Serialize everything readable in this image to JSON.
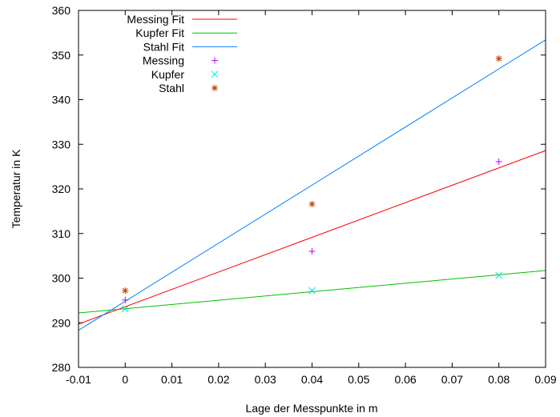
{
  "chart_data": {
    "type": "line",
    "title": "",
    "xlabel": "Lage der Messpunkte in m",
    "ylabel": "Temperatur in K",
    "xlim": [
      -0.01,
      0.09
    ],
    "ylim": [
      280,
      360
    ],
    "xticks": [
      -0.01,
      0,
      0.01,
      0.02,
      0.03,
      0.04,
      0.05,
      0.06,
      0.07,
      0.08,
      0.09
    ],
    "xtick_labels": [
      "-0.01",
      "0",
      "0.01",
      "0.02",
      "0.03",
      "0.04",
      "0.05",
      "0.06",
      "0.07",
      "0.08",
      "0.09"
    ],
    "yticks": [
      280,
      290,
      300,
      310,
      320,
      330,
      340,
      350,
      360
    ],
    "ytick_labels": [
      "280",
      "290",
      "300",
      "310",
      "320",
      "330",
      "340",
      "350",
      "360"
    ],
    "grid": false,
    "legend_position": "top-left",
    "fits": [
      {
        "name": "Messing Fit",
        "color": "#ff0000",
        "points": [
          [
            -0.01,
            289.7
          ],
          [
            0.09,
            328.6
          ]
        ]
      },
      {
        "name": "Kupfer Fit",
        "color": "#00c000",
        "points": [
          [
            -0.01,
            292.2
          ],
          [
            0.09,
            301.7
          ]
        ]
      },
      {
        "name": "Stahl Fit",
        "color": "#0080ff",
        "points": [
          [
            -0.01,
            288.3
          ],
          [
            0.09,
            353.4
          ]
        ]
      }
    ],
    "measurements": [
      {
        "name": "Messing",
        "color": "#c000ff",
        "marker": "plus",
        "points": [
          [
            0,
            295.1
          ],
          [
            0.04,
            306.0
          ],
          [
            0.08,
            326.1
          ]
        ]
      },
      {
        "name": "Kupfer",
        "color": "#00e0e0",
        "marker": "cross",
        "points": [
          [
            0,
            293.1
          ],
          [
            0.04,
            297.2
          ],
          [
            0.08,
            300.6
          ]
        ]
      },
      {
        "name": "Stahl",
        "color": "#c04000",
        "marker": "star",
        "points": [
          [
            0,
            297.2
          ],
          [
            0.04,
            316.6
          ],
          [
            0.08,
            349.2
          ]
        ]
      }
    ]
  }
}
